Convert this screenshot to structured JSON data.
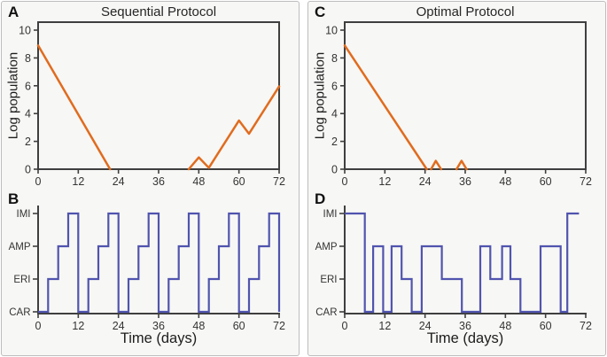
{
  "colors": {
    "population_line": "#E06C1E",
    "protocol_line": "#5054AE",
    "axis": "#3f3f3f",
    "text": "#343434",
    "card_background": "#f7f7f5",
    "card_border": "#bdbdbd"
  },
  "chart_data": [
    {
      "id": "A",
      "type": "line",
      "title": "Sequential Protocol",
      "ylabel": "Log population",
      "xlabel": "",
      "xlim": [
        0,
        72
      ],
      "ylim": [
        0,
        10.6
      ],
      "xticks": [
        0,
        12,
        24,
        36,
        48,
        60,
        72
      ],
      "yticks": [
        0,
        2,
        4,
        6,
        8,
        10
      ],
      "series": [
        {
          "name": "log-population",
          "segments": [
            [
              [
                0,
                8.9
              ],
              [
                21.5,
                0
              ]
            ],
            [
              [
                45,
                0
              ],
              [
                48,
                0.85
              ],
              [
                51,
                0.1
              ],
              [
                60,
                3.5
              ],
              [
                63,
                2.55
              ],
              [
                72,
                5.95
              ]
            ]
          ]
        }
      ]
    },
    {
      "id": "B",
      "type": "step",
      "xlabel": "Time (days)",
      "categories": [
        "CAR",
        "ERI",
        "AMP",
        "IMI"
      ],
      "xlim": [
        0,
        72
      ],
      "xticks": [
        0,
        12,
        24,
        36,
        48,
        60,
        72
      ],
      "end_drop": true,
      "schedule": [
        {
          "drug": "CAR",
          "from": 0,
          "to": 3
        },
        {
          "drug": "ERI",
          "from": 3,
          "to": 6
        },
        {
          "drug": "AMP",
          "from": 6,
          "to": 9
        },
        {
          "drug": "IMI",
          "from": 9,
          "to": 12
        },
        {
          "drug": "CAR",
          "from": 12,
          "to": 15
        },
        {
          "drug": "ERI",
          "from": 15,
          "to": 18
        },
        {
          "drug": "AMP",
          "from": 18,
          "to": 21
        },
        {
          "drug": "IMI",
          "from": 21,
          "to": 24
        },
        {
          "drug": "CAR",
          "from": 24,
          "to": 27
        },
        {
          "drug": "ERI",
          "from": 27,
          "to": 30
        },
        {
          "drug": "AMP",
          "from": 30,
          "to": 33
        },
        {
          "drug": "IMI",
          "from": 33,
          "to": 36
        },
        {
          "drug": "CAR",
          "from": 36,
          "to": 39
        },
        {
          "drug": "ERI",
          "from": 39,
          "to": 42
        },
        {
          "drug": "AMP",
          "from": 42,
          "to": 45
        },
        {
          "drug": "IMI",
          "from": 45,
          "to": 48
        },
        {
          "drug": "CAR",
          "from": 48,
          "to": 51
        },
        {
          "drug": "ERI",
          "from": 51,
          "to": 54
        },
        {
          "drug": "AMP",
          "from": 54,
          "to": 57
        },
        {
          "drug": "IMI",
          "from": 57,
          "to": 60
        },
        {
          "drug": "CAR",
          "from": 60,
          "to": 63
        },
        {
          "drug": "ERI",
          "from": 63,
          "to": 66
        },
        {
          "drug": "AMP",
          "from": 66,
          "to": 69
        },
        {
          "drug": "IMI",
          "from": 69,
          "to": 72
        }
      ]
    },
    {
      "id": "C",
      "type": "line",
      "title": "Optimal Protocol",
      "ylabel": "Log population",
      "xlabel": "",
      "xlim": [
        0,
        72
      ],
      "ylim": [
        0,
        10.6
      ],
      "xticks": [
        0,
        12,
        24,
        36,
        48,
        60,
        72
      ],
      "yticks": [
        0,
        2,
        4,
        6,
        8,
        10
      ],
      "series": [
        {
          "name": "log-population",
          "segments": [
            [
              [
                0,
                8.9
              ],
              [
                24.5,
                0
              ]
            ],
            [
              [
                25.8,
                0
              ],
              [
                27.2,
                0.6
              ],
              [
                28.8,
                0
              ]
            ],
            [
              [
                33.4,
                0
              ],
              [
                34.9,
                0.6
              ],
              [
                36.4,
                0
              ]
            ]
          ]
        }
      ]
    },
    {
      "id": "D",
      "type": "step",
      "xlabel": "Time (days)",
      "categories": [
        "CAR",
        "ERI",
        "AMP",
        "IMI"
      ],
      "xlim": [
        0,
        72
      ],
      "xticks": [
        0,
        12,
        24,
        36,
        48,
        60,
        72
      ],
      "end_drop": false,
      "schedule": [
        {
          "drug": "IMI",
          "from": 0,
          "to": 6
        },
        {
          "drug": "CAR",
          "from": 6,
          "to": 8.5
        },
        {
          "drug": "AMP",
          "from": 8.5,
          "to": 11.5
        },
        {
          "drug": "CAR",
          "from": 11.5,
          "to": 14
        },
        {
          "drug": "AMP",
          "from": 14,
          "to": 17
        },
        {
          "drug": "ERI",
          "from": 17,
          "to": 20
        },
        {
          "drug": "CAR",
          "from": 20,
          "to": 23
        },
        {
          "drug": "AMP",
          "from": 23,
          "to": 29
        },
        {
          "drug": "ERI",
          "from": 29,
          "to": 35
        },
        {
          "drug": "CAR",
          "from": 35,
          "to": 40.5
        },
        {
          "drug": "AMP",
          "from": 40.5,
          "to": 43.5
        },
        {
          "drug": "ERI",
          "from": 43.5,
          "to": 47
        },
        {
          "drug": "AMP",
          "from": 47,
          "to": 49.5
        },
        {
          "drug": "ERI",
          "from": 49.5,
          "to": 52.5
        },
        {
          "drug": "CAR",
          "from": 52.5,
          "to": 58.5
        },
        {
          "drug": "AMP",
          "from": 58.5,
          "to": 64.5
        },
        {
          "drug": "CAR",
          "from": 64.5,
          "to": 66.5
        },
        {
          "drug": "IMI",
          "from": 66.5,
          "to": 70
        }
      ]
    }
  ]
}
